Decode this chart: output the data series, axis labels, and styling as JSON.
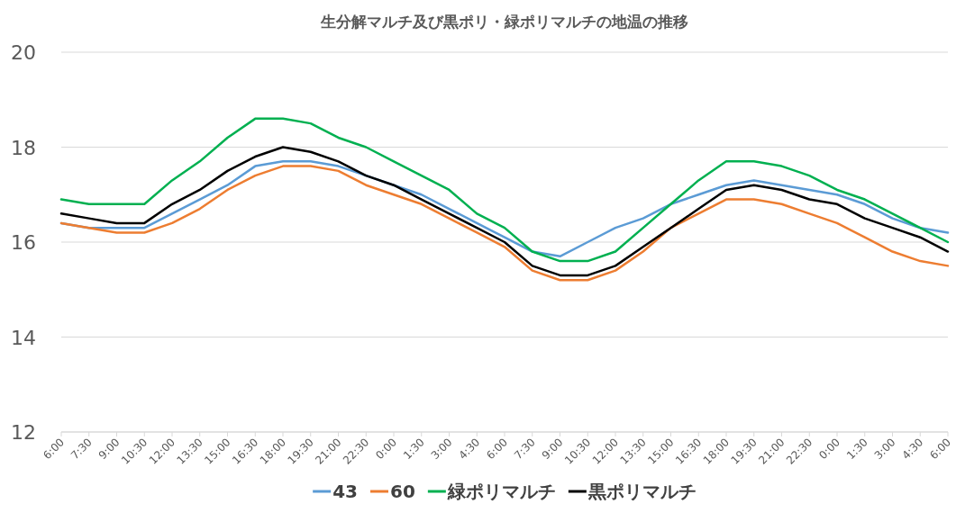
{
  "chart_data": {
    "type": "line",
    "title": "生分解マルチ及び黒ポリ・緑ポリマルチの地温の推移",
    "categories": [
      "6:00",
      "7:30",
      "9:00",
      "10:30",
      "12:00",
      "13:30",
      "15:00",
      "16:30",
      "18:00",
      "19:30",
      "21:00",
      "22:30",
      "0:00",
      "1:30",
      "3:00",
      "4:30",
      "6:00",
      "7:30",
      "9:00",
      "10:30",
      "12:00",
      "13:30",
      "15:00",
      "16:30",
      "18:00",
      "19:30",
      "21:00",
      "22:30",
      "0:00",
      "1:30",
      "3:00",
      "4:30",
      "6:00"
    ],
    "series": [
      {
        "name": "43",
        "color": "#5b9bd5",
        "values": [
          16.4,
          16.3,
          16.3,
          16.3,
          16.6,
          16.9,
          17.2,
          17.6,
          17.7,
          17.7,
          17.6,
          17.4,
          17.2,
          17.0,
          16.7,
          16.4,
          16.1,
          15.8,
          15.7,
          16.0,
          16.3,
          16.5,
          16.8,
          17.0,
          17.2,
          17.3,
          17.2,
          17.1,
          17.0,
          16.8,
          16.5,
          16.3,
          16.2
        ]
      },
      {
        "name": "60",
        "color": "#ed7d31",
        "values": [
          16.4,
          16.3,
          16.2,
          16.2,
          16.4,
          16.7,
          17.1,
          17.4,
          17.6,
          17.6,
          17.5,
          17.2,
          17.0,
          16.8,
          16.5,
          16.2,
          15.9,
          15.4,
          15.2,
          15.2,
          15.4,
          15.8,
          16.3,
          16.6,
          16.9,
          16.9,
          16.8,
          16.6,
          16.4,
          16.1,
          15.8,
          15.6,
          15.5
        ]
      },
      {
        "name": "緑ポリマルチ",
        "color": "#00b050",
        "values": [
          16.9,
          16.8,
          16.8,
          16.8,
          17.3,
          17.7,
          18.2,
          18.6,
          18.6,
          18.5,
          18.2,
          18.0,
          17.7,
          17.4,
          17.1,
          16.6,
          16.3,
          15.8,
          15.6,
          15.6,
          15.8,
          16.3,
          16.8,
          17.3,
          17.7,
          17.7,
          17.6,
          17.4,
          17.1,
          16.9,
          16.6,
          16.3,
          16.0
        ]
      },
      {
        "name": "黒ポリマルチ",
        "color": "#000000",
        "values": [
          16.6,
          16.5,
          16.4,
          16.4,
          16.8,
          17.1,
          17.5,
          17.8,
          18.0,
          17.9,
          17.7,
          17.4,
          17.2,
          16.9,
          16.6,
          16.3,
          16.0,
          15.5,
          15.3,
          15.3,
          15.5,
          15.9,
          16.3,
          16.7,
          17.1,
          17.2,
          17.1,
          16.9,
          16.8,
          16.5,
          16.3,
          16.1,
          15.8
        ]
      }
    ],
    "ylim": [
      12,
      20
    ],
    "yticks": [
      12,
      14,
      16,
      18,
      20
    ],
    "grid": "y",
    "legend": "bottom",
    "marker": "none",
    "line_style": "solid"
  }
}
